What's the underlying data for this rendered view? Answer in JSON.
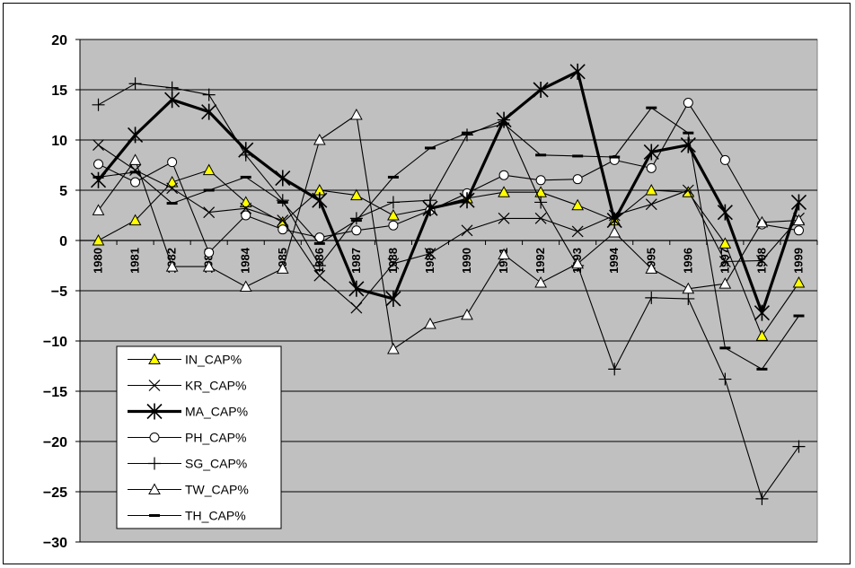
{
  "chart_data": {
    "type": "line",
    "x": [
      "1980",
      "1981",
      "1982",
      "1983",
      "1984",
      "1985",
      "1986",
      "1987",
      "1988",
      "1989",
      "1990",
      "1991",
      "1992",
      "1993",
      "1994",
      "1995",
      "1996",
      "1997",
      "1998",
      "1999"
    ],
    "ylim": [
      -30,
      20
    ],
    "yticks": [
      "20",
      "15",
      "10",
      "5",
      "0",
      "-5",
      "-10",
      "-15",
      "-20",
      "-25",
      "-30"
    ],
    "grid": "horizontal",
    "plot_background": "#c0c0c0",
    "marker_fill_in": "#ffff00",
    "legend_position": "lower-left",
    "series": [
      {
        "name": "IN_CAP%",
        "marker": "triangle-filled",
        "values": [
          0,
          2,
          5.8,
          7,
          3.8,
          1.8,
          5,
          4.5,
          2.5,
          3.2,
          4.2,
          4.8,
          4.8,
          3.5,
          2,
          5,
          4.8,
          -0.3,
          -9.5,
          -4.2
        ]
      },
      {
        "name": "KR_CAP%",
        "marker": "x",
        "values": [
          9.5,
          7,
          5.2,
          2.8,
          3.2,
          2,
          -3.5,
          -6.7,
          -2.3,
          -1.3,
          1,
          2.2,
          2.2,
          0.9,
          2.5,
          3.6,
          5,
          -2.1,
          -2,
          2.2
        ]
      },
      {
        "name": "MA_CAP%",
        "marker": "star",
        "bold": true,
        "values": [
          6,
          10.5,
          14,
          12.8,
          9,
          6.2,
          4,
          -4.8,
          -5.8,
          3.2,
          4,
          12,
          15,
          16.8,
          2,
          8.8,
          9.5,
          2.8,
          -7.2,
          3.8
        ]
      },
      {
        "name": "PH_CAP%",
        "marker": "circle",
        "values": [
          7.6,
          5.8,
          7.8,
          -1.2,
          2.5,
          1.1,
          0.3,
          1,
          1.5,
          3,
          4.7,
          6.5,
          6,
          6.1,
          8,
          7.2,
          13.7,
          8,
          1.6,
          1
        ]
      },
      {
        "name": "SG_CAP%",
        "marker": "plus",
        "values": [
          13.5,
          15.6,
          15.2,
          14.5,
          8.5,
          4,
          -2.5,
          2.2,
          3.8,
          4,
          10.5,
          12,
          3.8,
          -2.5,
          -12.8,
          -5.7,
          -5.8,
          -13.8,
          -25.7,
          -20.5
        ]
      },
      {
        "name": "TW_CAP%",
        "marker": "triangle-open",
        "values": [
          3,
          8,
          -2.6,
          -2.6,
          -4.6,
          -2.8,
          10,
          12.5,
          -10.8,
          -8.3,
          -7.4,
          -1.4,
          -4.2,
          -2.3,
          0.8,
          -2.8,
          -4.8,
          -4.3,
          1.8,
          2
        ]
      },
      {
        "name": "TH_CAP%",
        "marker": "dash",
        "values": [
          6.3,
          6.8,
          3.7,
          5,
          6.3,
          3.8,
          -0.3,
          2,
          6.3,
          9.2,
          10.7,
          11.6,
          8.5,
          8.4,
          8.3,
          13.2,
          10.7,
          -10.7,
          -12.8,
          -7.5
        ]
      }
    ]
  }
}
